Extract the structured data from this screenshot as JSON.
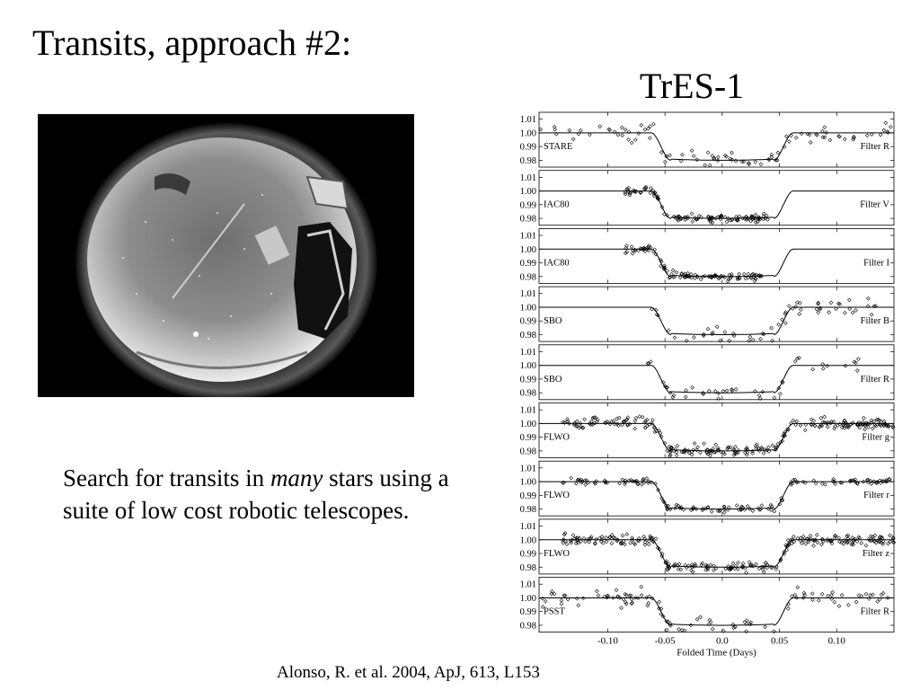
{
  "slide": {
    "title": "Transits, approach #2:",
    "body_before": "Search for transits in ",
    "body_emphasis": "many",
    "body_after": " stars using a suite of low cost robotic telescopes.",
    "citation": "Alonso, R. et al. 2004, ApJ, 613, L153"
  },
  "colors": {
    "background": "#ffffff",
    "text": "#000000",
    "photo_background": "#000000"
  },
  "chart_data": {
    "type": "scatter",
    "title": "TrES-1",
    "xlabel": "Folded Time (Days)",
    "ylabel": "",
    "xlim": [
      -0.16,
      0.15
    ],
    "ylim": [
      0.975,
      1.015
    ],
    "x_ticks": [
      -0.1,
      -0.05,
      0.0,
      0.05,
      0.1
    ],
    "x_tick_labels": [
      "-0.10",
      "-0.05",
      "0.0",
      "0.05",
      "0.10"
    ],
    "y_ticks": [
      1.01,
      1.0,
      0.99,
      0.98
    ],
    "y_tick_labels": [
      "1.01",
      "1.00",
      "0.99",
      "0.98"
    ],
    "grid": false,
    "model": {
      "depth": 0.02,
      "ingress_start": -0.062,
      "ingress_end": -0.045,
      "egress_start": 0.045,
      "egress_end": 0.062
    },
    "panels": [
      {
        "telescope": "STARE",
        "filter": "Filter R",
        "x_range": [
          -0.16,
          0.15
        ],
        "n_points": 95,
        "scatter": 0.0045
      },
      {
        "telescope": "IAC80",
        "filter": "Filter V",
        "x_range": [
          -0.085,
          0.04
        ],
        "n_points": 120,
        "scatter": 0.002
      },
      {
        "telescope": "IAC80",
        "filter": "Filter I",
        "x_range": [
          -0.085,
          0.035
        ],
        "n_points": 110,
        "scatter": 0.002
      },
      {
        "telescope": "SBO",
        "filter": "Filter B",
        "x_range": [
          -0.065,
          0.14
        ],
        "n_points": 60,
        "scatter": 0.005
      },
      {
        "telescope": "SBO",
        "filter": "Filter R",
        "x_range": [
          -0.065,
          0.12
        ],
        "n_points": 45,
        "scatter": 0.004
      },
      {
        "telescope": "FLWO",
        "filter": "Filter g",
        "x_range": [
          -0.14,
          0.15
        ],
        "n_points": 260,
        "scatter": 0.003
      },
      {
        "telescope": "FLWO",
        "filter": "Filter r",
        "x_range": [
          -0.14,
          0.15
        ],
        "n_points": 150,
        "scatter": 0.0015
      },
      {
        "telescope": "FLWO",
        "filter": "Filter z",
        "x_range": [
          -0.14,
          0.15
        ],
        "n_points": 260,
        "scatter": 0.003
      },
      {
        "telescope": "PSST",
        "filter": "Filter R",
        "x_range": [
          -0.16,
          0.15
        ],
        "n_points": 110,
        "scatter": 0.004
      }
    ]
  }
}
